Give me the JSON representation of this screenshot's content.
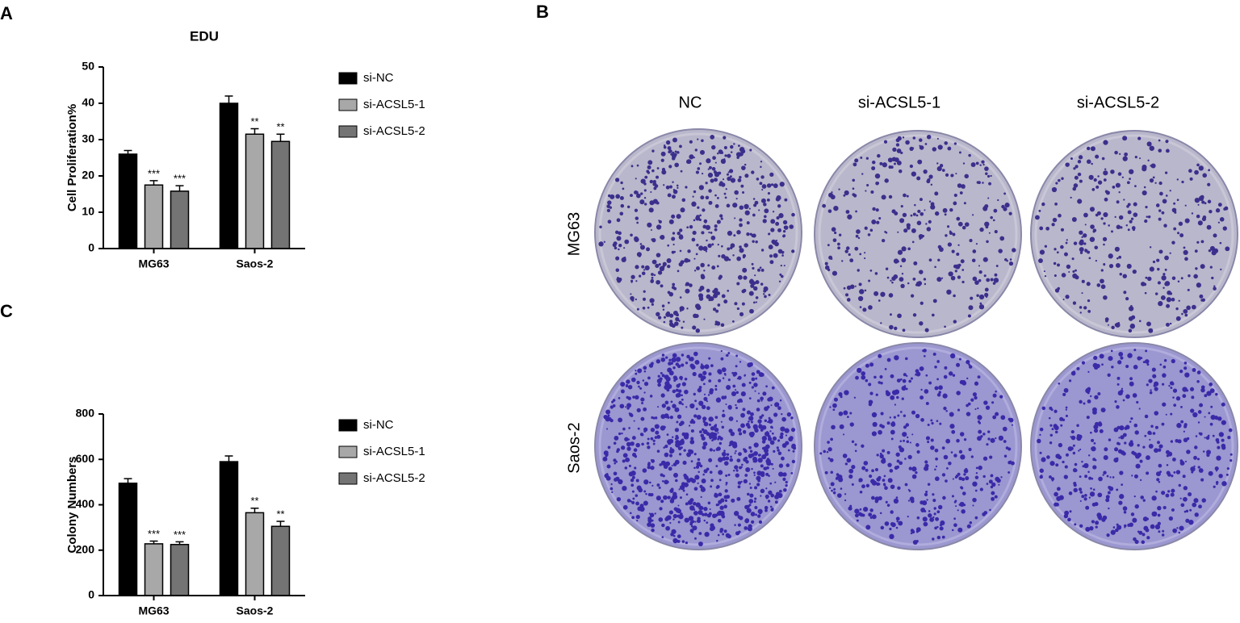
{
  "panels": {
    "a": "A",
    "b": "B",
    "c": "C"
  },
  "plates": {
    "columns": [
      "NC",
      "si-ACSL5-1",
      "si-ACSL5-2"
    ],
    "rows": [
      "MG63",
      "Saos-2"
    ]
  },
  "chart_data": [
    {
      "type": "bar",
      "title": "EDU",
      "y_label": "Cell Proliferation%",
      "categories": [
        "MG63",
        "Saos-2"
      ],
      "series": [
        {
          "name": "si-NC",
          "color": "#000000",
          "values": [
            26,
            40
          ],
          "errors": [
            1,
            2
          ]
        },
        {
          "name": "si-ACSL5-1",
          "color": "#a8a8a8",
          "values": [
            17.5,
            31.5
          ],
          "errors": [
            1.2,
            1.5
          ],
          "annotations": [
            "***",
            "**"
          ]
        },
        {
          "name": "si-ACSL5-2",
          "color": "#747474",
          "values": [
            15.8,
            29.5
          ],
          "errors": [
            1.5,
            2
          ],
          "annotations": [
            "***",
            "**"
          ]
        }
      ],
      "ylim": [
        0,
        50
      ],
      "yticks": [
        0,
        10,
        20,
        30,
        40,
        50
      ],
      "legend": "right"
    },
    {
      "type": "bar",
      "y_label": "Colony Numbers",
      "categories": [
        "MG63",
        "Saos-2"
      ],
      "series": [
        {
          "name": "si-NC",
          "color": "#000000",
          "values": [
            495,
            590
          ],
          "errors": [
            20,
            25
          ]
        },
        {
          "name": "si-ACSL5-1",
          "color": "#a8a8a8",
          "values": [
            228,
            365
          ],
          "errors": [
            12,
            20
          ],
          "annotations": [
            "***",
            "**"
          ]
        },
        {
          "name": "si-ACSL5-2",
          "color": "#747474",
          "values": [
            225,
            305
          ],
          "errors": [
            12,
            22
          ],
          "annotations": [
            "***",
            "**"
          ]
        }
      ],
      "ylim": [
        0,
        800
      ],
      "yticks": [
        0,
        200,
        400,
        600,
        800
      ],
      "legend": "right"
    }
  ]
}
